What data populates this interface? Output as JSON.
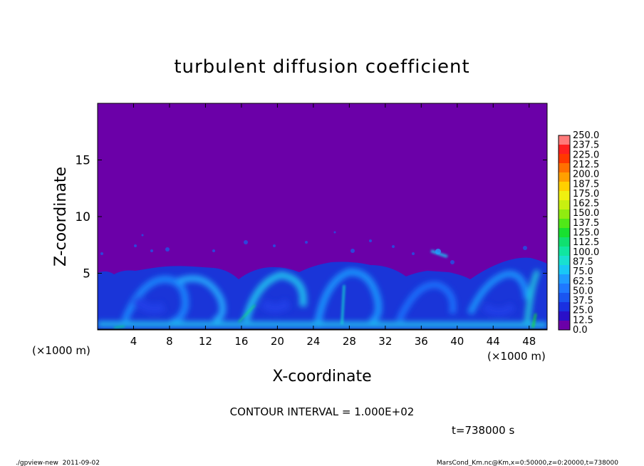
{
  "chart_data": {
    "type": "heatmap",
    "title": "turbulent diffusion coefficient",
    "xlabel": "X-coordinate",
    "ylabel": "Z-coordinate",
    "x_unit_label_left": "(×1000 m)",
    "x_unit_label_right": "(×1000 m)",
    "xlim": [
      0,
      50
    ],
    "ylim": [
      0,
      20
    ],
    "x_ticks": [
      4,
      8,
      12,
      16,
      20,
      24,
      28,
      32,
      36,
      40,
      44,
      48
    ],
    "y_ticks": [
      5,
      10,
      15
    ],
    "colorbar_levels": [
      "0.0",
      "12.5",
      "25.0",
      "37.5",
      "50.0",
      "62.5",
      "75.0",
      "87.5",
      "100.0",
      "112.5",
      "125.0",
      "137.5",
      "150.0",
      "162.5",
      "175.0",
      "187.5",
      "200.0",
      "212.5",
      "225.0",
      "237.5",
      "250.0"
    ],
    "colorbar_colors": [
      "#6b00a8",
      "#2a10c8",
      "#1a30e0",
      "#1a55f0",
      "#1f78ff",
      "#1f9cff",
      "#19c8f5",
      "#18e0d0",
      "#10e6a0",
      "#10e070",
      "#18e030",
      "#50e818",
      "#90ec10",
      "#c8f010",
      "#f0f010",
      "#ffd000",
      "#ffa000",
      "#ff7000",
      "#ff3800",
      "#ff2020",
      "#ff7a7a"
    ],
    "background_value_color": "#6b00a8",
    "contour_interval": "CONTOUR INTERVAL = 1.000E+02",
    "time_label": "t=738000 s"
  },
  "footer": {
    "left": "./gpview-new  2011-09-02",
    "right": "MarsCond_Km.nc@Km,x=0:50000,z=0:20000,t=738000"
  }
}
